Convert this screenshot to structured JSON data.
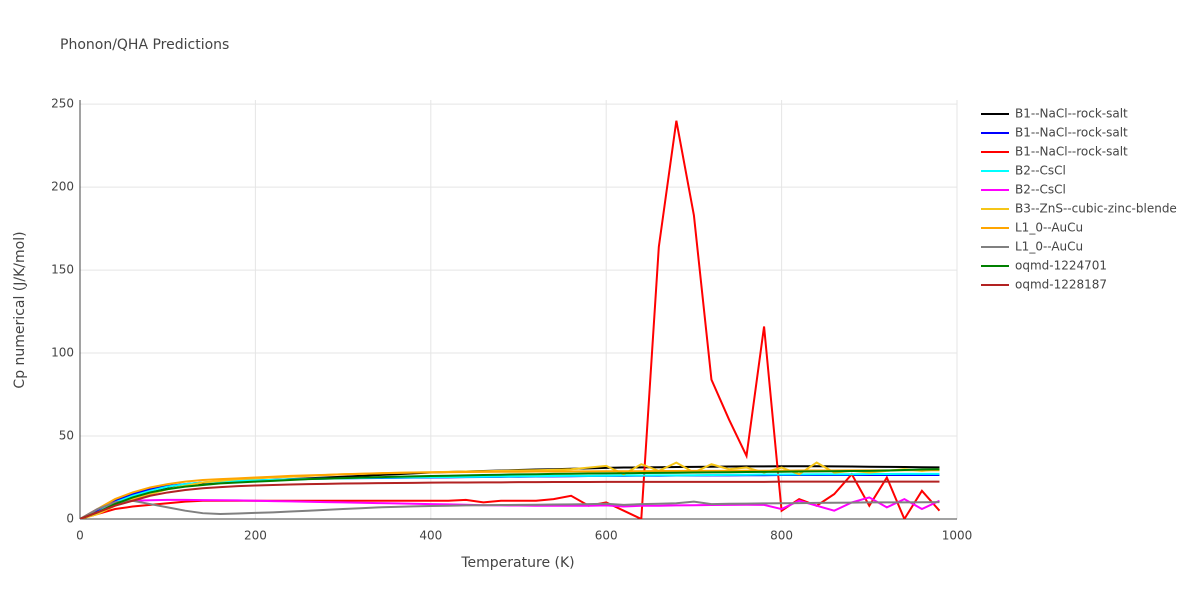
{
  "chart_data": {
    "type": "line",
    "title": "Phonon/QHA Predictions",
    "x_label": "Temperature (K)",
    "y_label": "Cp numerical (J/K/mol)",
    "xlim": [
      0,
      1000
    ],
    "ylim": [
      0,
      252.5
    ],
    "xticks": [
      0,
      200,
      400,
      600,
      800,
      1000
    ],
    "yticks": [
      0,
      50,
      100,
      150,
      200,
      250
    ],
    "grid": true,
    "legend": "right",
    "x": [
      0,
      20,
      40,
      60,
      80,
      100,
      120,
      140,
      160,
      180,
      200,
      220,
      240,
      260,
      280,
      300,
      320,
      340,
      360,
      380,
      400,
      420,
      440,
      460,
      480,
      500,
      520,
      540,
      560,
      580,
      600,
      620,
      640,
      660,
      680,
      700,
      720,
      740,
      760,
      780,
      800,
      820,
      840,
      860,
      880,
      900,
      920,
      940,
      960,
      980
    ],
    "series": [
      {
        "name": "B1--NaCl--rock-salt",
        "color": "#000000",
        "values": [
          0,
          4,
          9,
          13,
          16,
          18.5,
          20,
          21,
          22,
          22.5,
          23,
          23.5,
          24,
          24.5,
          25,
          25.5,
          26,
          26.5,
          27,
          27.5,
          28,
          28.3,
          28.6,
          28.9,
          29.2,
          29.5,
          29.8,
          30,
          30.3,
          30.5,
          30.8,
          31,
          31.1,
          31.2,
          31.3,
          31.4,
          31.5,
          31.6,
          31.7,
          31.7,
          31.8,
          31.8,
          31.8,
          31.7,
          31.6,
          31.5,
          31.4,
          31.3,
          31.2,
          31.1
        ]
      },
      {
        "name": "B1--NaCl--rock-salt",
        "color": "#0000ff",
        "values": [
          0,
          5,
          11,
          15,
          18,
          20,
          21,
          22,
          22.5,
          23,
          23.3,
          23.6,
          23.9,
          24.1,
          24.3,
          24.5,
          24.6,
          24.7,
          24.8,
          24.9,
          25,
          25.1,
          25.2,
          25.3,
          25.4,
          25.5,
          25.6,
          25.7,
          25.8,
          25.9,
          26,
          26,
          26.1,
          26.1,
          26.2,
          26.2,
          26.3,
          26.3,
          26.4,
          26.4,
          26.5,
          26.5,
          26.5,
          26.5,
          26.5,
          26.5,
          26.5,
          26.5,
          26.5,
          26.5
        ]
      },
      {
        "name": "B1--NaCl--rock-salt",
        "color": "#ff0000",
        "values": [
          0,
          3,
          6,
          7.5,
          8.5,
          9.5,
          10.5,
          11,
          11,
          11,
          11,
          11,
          11,
          11,
          11,
          11,
          11,
          11,
          11,
          11,
          11,
          11,
          11.5,
          10,
          11,
          11,
          11,
          12,
          14,
          8,
          10,
          5,
          0,
          164,
          240,
          183,
          84,
          60,
          38,
          116,
          5,
          12,
          8,
          15,
          27,
          8,
          25,
          0,
          17,
          5
        ]
      },
      {
        "name": "B2--CsCl",
        "color": "#00ffff",
        "values": [
          0,
          4,
          10,
          14,
          17,
          19.5,
          21,
          22,
          22.5,
          23,
          23.3,
          23.6,
          23.9,
          24.1,
          24.3,
          24.5,
          24.7,
          24.9,
          25,
          25.1,
          25.2,
          25.3,
          25.4,
          25.5,
          25.6,
          25.7,
          25.8,
          25.9,
          26,
          26,
          26.1,
          26.2,
          26.2,
          26.3,
          26.3,
          26.4,
          26.5,
          26.6,
          26.7,
          26.8,
          26.8,
          26.9,
          27,
          27,
          27,
          27.1,
          27.1,
          27.2,
          27.2,
          27.2
        ]
      },
      {
        "name": "B2--CsCl",
        "color": "#ff00ff",
        "values": [
          0,
          6,
          10,
          11,
          11.3,
          11.5,
          11.5,
          11.4,
          11.3,
          11.2,
          11,
          10.8,
          10.6,
          10.4,
          10.2,
          10,
          9.8,
          9.6,
          9.4,
          9.2,
          9,
          8.8,
          8.6,
          8.3,
          8.2,
          8.1,
          8,
          8,
          8,
          8,
          8.2,
          7.5,
          8,
          8,
          8.2,
          8.3,
          8.4,
          8.5,
          8.6,
          8.5,
          6,
          11,
          8,
          5,
          10,
          13,
          7,
          12,
          6,
          11
        ]
      },
      {
        "name": "B3--ZnS--cubic-zinc-blende",
        "color": "#f5c518",
        "values": [
          0,
          3,
          8,
          12,
          15,
          18,
          20,
          22,
          23,
          24,
          24.5,
          25,
          25.5,
          26,
          26.5,
          27,
          27.2,
          27.5,
          27.8,
          28,
          28.2,
          28.4,
          28.6,
          28.8,
          29,
          29.2,
          29.4,
          29.6,
          30,
          31,
          32,
          27,
          33,
          29,
          34,
          28,
          33,
          30,
          31,
          28,
          31,
          27,
          34,
          28,
          29,
          28,
          29,
          30,
          29,
          30
        ]
      },
      {
        "name": "L1_0--AuCu",
        "color": "#ffa500",
        "values": [
          0,
          6,
          12,
          16,
          19,
          21,
          22.5,
          23.5,
          24,
          24.5,
          25,
          25.5,
          26,
          26.3,
          26.6,
          27,
          27.3,
          27.6,
          27.8,
          28,
          28.1,
          28.2,
          28.3,
          28.4,
          28.5,
          28.5,
          28.6,
          28.6,
          28.7,
          28.7,
          28.8,
          28.8,
          28.8,
          28.9,
          28.9,
          29,
          29,
          29,
          29.1,
          29.1,
          29.1,
          29.2,
          29.2,
          29.2,
          29.3,
          29.3,
          29.3,
          29.4,
          29.4,
          29.4
        ]
      },
      {
        "name": "L1_0--AuCu",
        "color": "#808080",
        "values": [
          0,
          6,
          10,
          11,
          9,
          7,
          5,
          3.5,
          3,
          3.3,
          3.7,
          4,
          4.5,
          5,
          5.5,
          6,
          6.5,
          7,
          7.3,
          7.6,
          7.8,
          8,
          8.2,
          8.3,
          8.4,
          8.5,
          8.6,
          8.7,
          8.8,
          9,
          9.2,
          8.5,
          9,
          9.2,
          9.5,
          10.5,
          9,
          9.2,
          9.3,
          9.4,
          9.5,
          9.6,
          9.7,
          9.8,
          9.9,
          10,
          10,
          10,
          10.1,
          10.2
        ]
      },
      {
        "name": "oqmd-1224701",
        "color": "#008000",
        "values": [
          0,
          4,
          9,
          13,
          16,
          18,
          19.5,
          20.5,
          21.5,
          22,
          22.5,
          23,
          23.5,
          24,
          24.3,
          24.6,
          24.9,
          25.2,
          25.5,
          25.7,
          25.9,
          26.1,
          26.3,
          26.5,
          26.7,
          26.9,
          27,
          27.2,
          27.3,
          27.4,
          27.5,
          27.6,
          27.7,
          27.8,
          27.9,
          28,
          28.1,
          28.2,
          28.3,
          28.4,
          28.5,
          28.6,
          28.7,
          28.8,
          28.9,
          29,
          29.2,
          29.5,
          29.8,
          30
        ]
      },
      {
        "name": "oqmd-1228187",
        "color": "#b22222",
        "values": [
          0,
          4,
          8,
          11,
          14,
          16,
          17.5,
          18.5,
          19.2,
          19.8,
          20.2,
          20.5,
          20.8,
          21,
          21.2,
          21.4,
          21.5,
          21.6,
          21.7,
          21.8,
          21.9,
          22,
          22,
          22.1,
          22.1,
          22.2,
          22.2,
          22.3,
          22.3,
          22.3,
          22.4,
          22.4,
          22.4,
          22.4,
          22.4,
          22.4,
          22.4,
          22.4,
          22.4,
          22.4,
          22.5,
          22.5,
          22.5,
          22.5,
          22.5,
          22.5,
          22.5,
          22.5,
          22.5,
          22.5
        ]
      }
    ]
  }
}
